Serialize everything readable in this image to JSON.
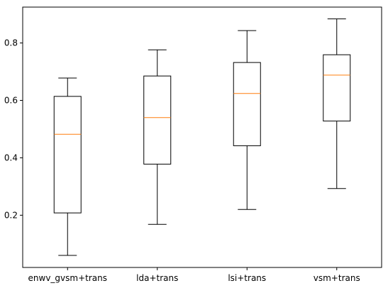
{
  "chart_data": {
    "type": "boxplot",
    "title": "",
    "xlabel": "",
    "ylabel": "",
    "ylim": [
      0.018,
      0.925
    ],
    "yticks": [
      "0.2",
      "0.4",
      "0.6",
      "0.8"
    ],
    "ytick_values": [
      0.2,
      0.4,
      0.6,
      0.8
    ],
    "grid": false,
    "legend": "none",
    "colors": {
      "box": "#000000",
      "median": "#ff7f0e",
      "background": "#ffffff"
    },
    "categories": [
      "enwv_gvsm+trans",
      "lda+trans",
      "lsi+trans",
      "vsm+trans"
    ],
    "boxes": [
      {
        "whisker_low": 0.06,
        "q1": 0.208,
        "median": 0.482,
        "q3": 0.614,
        "whisker_high": 0.678
      },
      {
        "whisker_low": 0.168,
        "q1": 0.378,
        "median": 0.54,
        "q3": 0.685,
        "whisker_high": 0.776
      },
      {
        "whisker_low": 0.22,
        "q1": 0.442,
        "median": 0.624,
        "q3": 0.732,
        "whisker_high": 0.843
      },
      {
        "whisker_low": 0.293,
        "q1": 0.528,
        "median": 0.688,
        "q3": 0.759,
        "whisker_high": 0.884
      }
    ]
  }
}
